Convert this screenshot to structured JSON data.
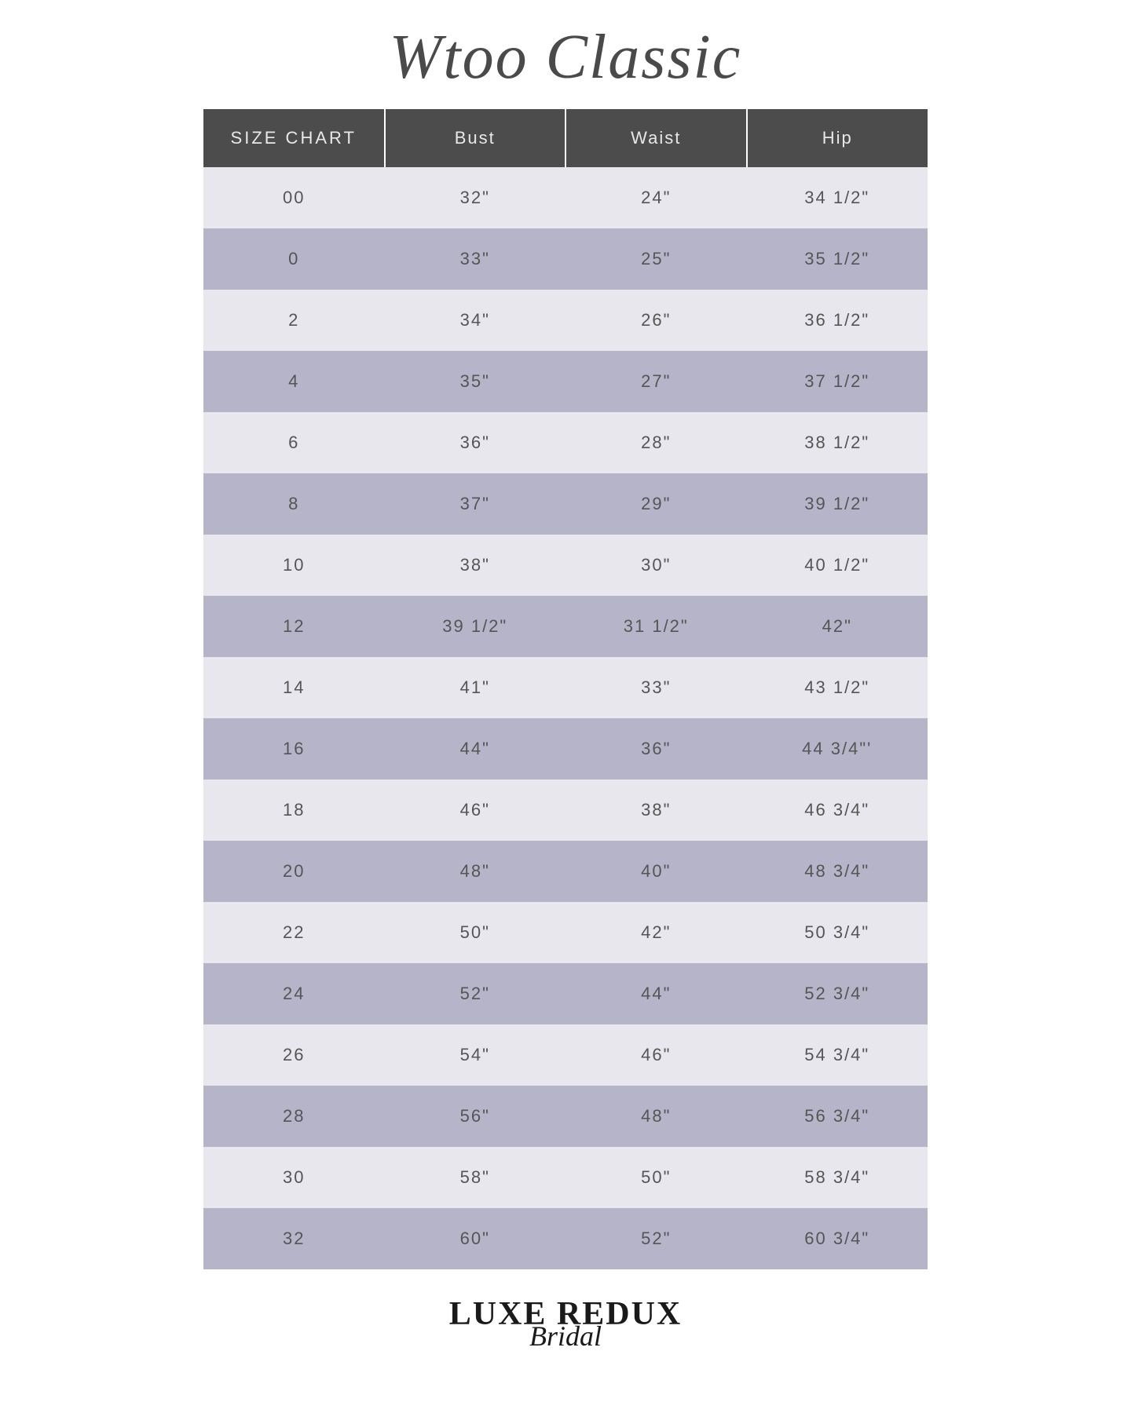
{
  "title": "Wtoo Classic",
  "table": {
    "type": "table",
    "header_bg": "#4c4c4c",
    "header_text_color": "#e8e8e8",
    "row_light_bg": "#e9e7ee",
    "row_dark_bg": "#b6b4c9",
    "cell_text_color": "#555555",
    "columns": [
      "SIZE CHART",
      "Bust",
      "Waist",
      "Hip"
    ],
    "rows": [
      [
        "00",
        "32\"",
        "24\"",
        "34 1/2\""
      ],
      [
        "0",
        "33\"",
        "25\"",
        "35 1/2\""
      ],
      [
        "2",
        "34\"",
        "26\"",
        "36 1/2\""
      ],
      [
        "4",
        "35\"",
        "27\"",
        "37 1/2\""
      ],
      [
        "6",
        "36\"",
        "28\"",
        "38 1/2\""
      ],
      [
        "8",
        "37\"",
        "29\"",
        "39 1/2\""
      ],
      [
        "10",
        "38\"",
        "30\"",
        "40 1/2\""
      ],
      [
        "12",
        "39 1/2\"",
        "31 1/2\"",
        "42\""
      ],
      [
        "14",
        "41\"",
        "33\"",
        "43 1/2\""
      ],
      [
        "16",
        "44\"",
        "36\"",
        "44 3/4\"'"
      ],
      [
        "18",
        "46\"",
        "38\"",
        "46 3/4\""
      ],
      [
        "20",
        "48\"",
        "40\"",
        "48 3/4\""
      ],
      [
        "22",
        "50\"",
        "42\"",
        "50 3/4\""
      ],
      [
        "24",
        "52\"",
        "44\"",
        "52 3/4\""
      ],
      [
        "26",
        "54\"",
        "46\"",
        "54 3/4\""
      ],
      [
        "28",
        "56\"",
        "48\"",
        "56 3/4\""
      ],
      [
        "30",
        "58\"",
        "50\"",
        "58 3/4\""
      ],
      [
        "32",
        "60\"",
        "52\"",
        "60 3/4\""
      ]
    ]
  },
  "footer": {
    "main": "LUXE REDUX",
    "sub": "Bridal"
  }
}
